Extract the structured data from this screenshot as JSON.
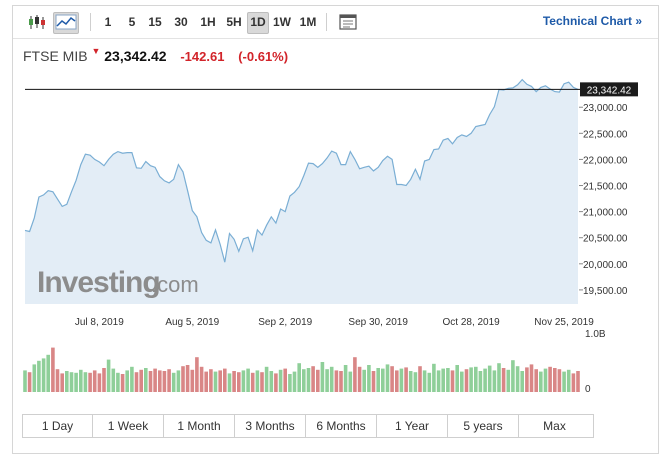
{
  "toolbar": {
    "candlestick_icon": "candlestick-icon",
    "area_icon": "area-chart-icon",
    "intervals": [
      "1",
      "5",
      "15",
      "30",
      "1H",
      "5H",
      "1D",
      "1W",
      "1M"
    ],
    "active_interval": "1D",
    "settings_icon": "calendar-settings-icon",
    "technical_chart_label": "Technical Chart »"
  },
  "quote": {
    "name": "FTSE MIB",
    "arrow": "▼",
    "price": "23,342.42",
    "change": "-142.61",
    "change_pct": "(-0.61%)"
  },
  "colors": {
    "line": "#7aaed4",
    "fill": "#e3edf6",
    "up_volume": "#8fcf99",
    "down_volume": "#d98686",
    "negative": "#d2242a",
    "link": "#1e5aa8"
  },
  "watermark": {
    "text": "Investing",
    "suffix": ".com"
  },
  "chart_data": {
    "type": "area",
    "current_price_label": "23,342.42",
    "current_price": 23342.42,
    "y_ticks": [
      "23,000.00",
      "22,500.00",
      "22,000.00",
      "21,500.00",
      "21,000.00",
      "20,500.00",
      "20,000.00",
      "19,500.00"
    ],
    "y_tick_values": [
      23000,
      22500,
      22000,
      21500,
      21000,
      20500,
      20000,
      19500
    ],
    "ylim": [
      19230,
      23560
    ],
    "x_labels": [
      "Jul 8, 2019",
      "Aug 5, 2019",
      "Sep 2, 2019",
      "Sep 30, 2019",
      "Oct 28, 2019",
      "Nov 25, 2019"
    ],
    "x_label_index": [
      16,
      36,
      56,
      76,
      96,
      116
    ],
    "values": [
      20640,
      20620,
      20880,
      21280,
      21320,
      21400,
      21380,
      21240,
      21100,
      21140,
      21380,
      21600,
      21900,
      22100,
      22080,
      22000,
      21950,
      21880,
      22000,
      22100,
      22150,
      22120,
      22130,
      22130,
      21840,
      21830,
      21960,
      21880,
      21850,
      21670,
      21590,
      21550,
      21620,
      21900,
      21760,
      21400,
      21020,
      20900,
      20600,
      20450,
      20400,
      20650,
      20370,
      20030,
      20580,
      20470,
      20240,
      20480,
      20510,
      20250,
      20650,
      20550,
      20740,
      20900,
      20780,
      21050,
      21000,
      21300,
      21370,
      21480,
      21690,
      21930,
      21920,
      21850,
      21920,
      22030,
      22160,
      22120,
      21900,
      21900,
      22150,
      22000,
      21820,
      21850,
      21870,
      21780,
      21850,
      21980,
      22060,
      22000,
      21520,
      21520,
      21500,
      21620,
      21810,
      21620,
      21970,
      22000,
      22190,
      22200,
      22370,
      22400,
      22300,
      22420,
      22470,
      22440,
      22500,
      22630,
      22650,
      22670,
      22860,
      23010,
      23340,
      23330,
      23360,
      23370,
      23430,
      23530,
      23440,
      23400,
      23300,
      23380,
      23410,
      23350,
      23300,
      23290,
      23450,
      23480,
      23380,
      23342.42
    ],
    "volume_label": "1.0B",
    "volume_zero_label": "0",
    "volume_max": 1.0,
    "volumes": [
      0.36,
      0.33,
      0.46,
      0.52,
      0.56,
      0.62,
      0.74,
      0.38,
      0.31,
      0.35,
      0.33,
      0.32,
      0.37,
      0.33,
      0.32,
      0.36,
      0.31,
      0.4,
      0.54,
      0.39,
      0.32,
      0.3,
      0.36,
      0.42,
      0.33,
      0.37,
      0.4,
      0.35,
      0.39,
      0.36,
      0.35,
      0.38,
      0.32,
      0.36,
      0.43,
      0.45,
      0.37,
      0.58,
      0.42,
      0.34,
      0.38,
      0.34,
      0.36,
      0.39,
      0.31,
      0.35,
      0.33,
      0.36,
      0.39,
      0.32,
      0.36,
      0.33,
      0.42,
      0.35,
      0.31,
      0.37,
      0.39,
      0.3,
      0.34,
      0.48,
      0.38,
      0.4,
      0.43,
      0.37,
      0.5,
      0.38,
      0.42,
      0.36,
      0.35,
      0.45,
      0.34,
      0.58,
      0.42,
      0.37,
      0.45,
      0.35,
      0.4,
      0.39,
      0.46,
      0.43,
      0.36,
      0.39,
      0.41,
      0.35,
      0.33,
      0.43,
      0.36,
      0.32,
      0.47,
      0.36,
      0.39,
      0.4,
      0.36,
      0.45,
      0.34,
      0.38,
      0.41,
      0.42,
      0.35,
      0.39,
      0.44,
      0.36,
      0.48,
      0.4,
      0.37,
      0.53,
      0.43,
      0.35,
      0.41,
      0.46,
      0.38,
      0.34,
      0.39,
      0.42,
      0.4,
      0.38,
      0.34,
      0.37,
      0.31,
      0.35
    ]
  },
  "range_buttons": [
    "1 Day",
    "1 Week",
    "1 Month",
    "3 Months",
    "6 Months",
    "1 Year",
    "5 years",
    "Max"
  ]
}
